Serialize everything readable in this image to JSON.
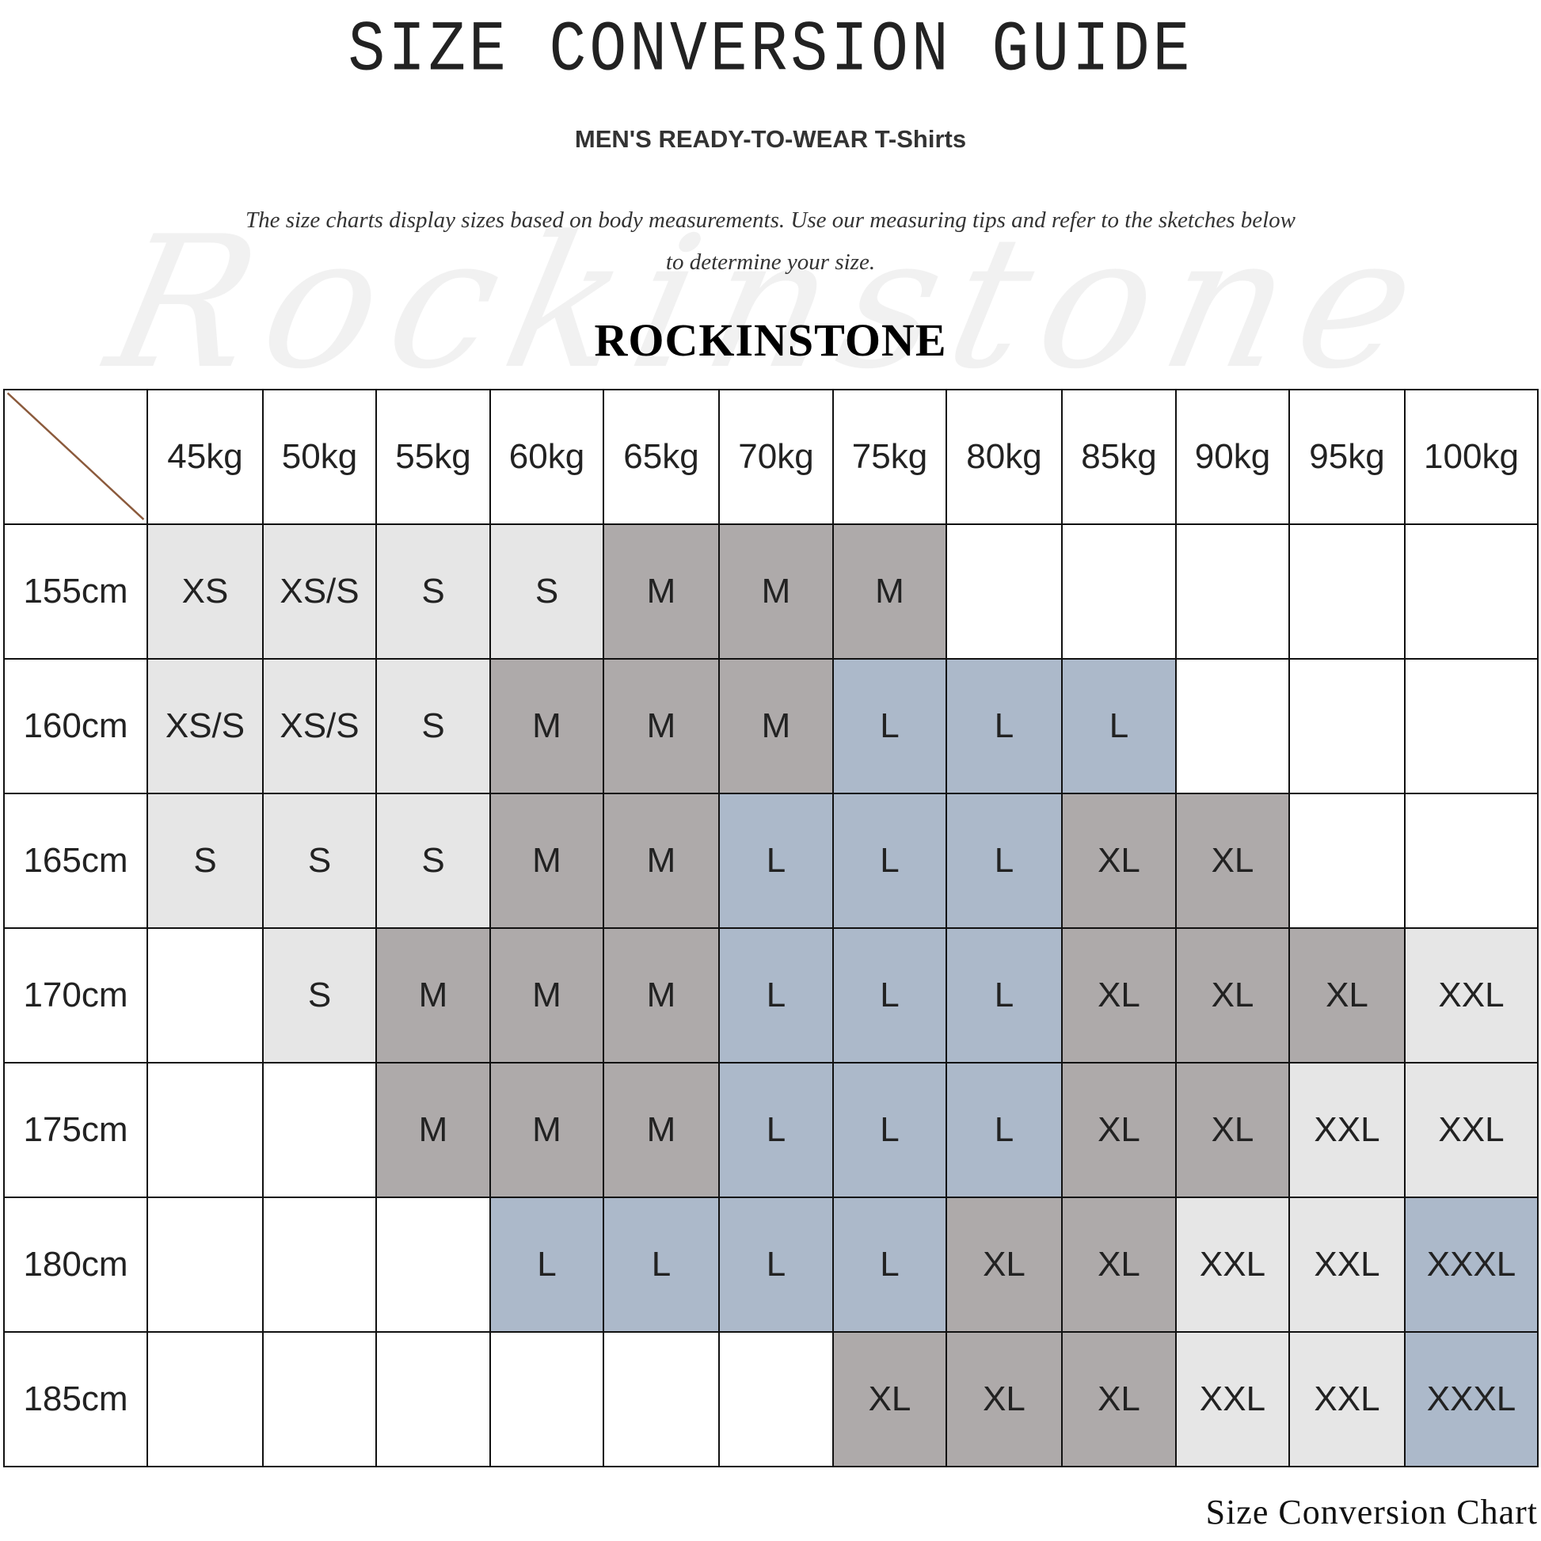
{
  "watermark": "Rockinstone",
  "title": "SIZE CONVERSION GUIDE",
  "subtitle": "MEN'S READY-TO-WEAR T-Shirts",
  "description": "The size charts display sizes based on body measurements. Use our measuring tips and refer to the sketches below to determine your size.",
  "brand": "ROCKINSTONE",
  "footer": "Size Conversion Chart",
  "colors": {
    "XS": "#e6e6e6",
    "XS/S": "#e6e6e6",
    "S": "#e6e6e6",
    "M": "#aeaaaa",
    "L": "#acb9ca",
    "XL": "#aeaaaa",
    "XXL": "#e6e6e6",
    "XXXL": "#acb9ca",
    "": "#ffffff",
    "diagonal": "#8b5a3c"
  },
  "table": {
    "columns": [
      "45kg",
      "50kg",
      "55kg",
      "60kg",
      "65kg",
      "70kg",
      "75kg",
      "80kg",
      "85kg",
      "90kg",
      "95kg",
      "100kg"
    ],
    "rows": [
      {
        "height": "155cm",
        "sizes": [
          "XS",
          "XS/S",
          "S",
          "S",
          "M",
          "M",
          "M",
          "",
          "",
          "",
          "",
          ""
        ]
      },
      {
        "height": "160cm",
        "sizes": [
          "XS/S",
          "XS/S",
          "S",
          "M",
          "M",
          "M",
          "L",
          "L",
          "L",
          "",
          "",
          ""
        ]
      },
      {
        "height": "165cm",
        "sizes": [
          "S",
          "S",
          "S",
          "M",
          "M",
          "L",
          "L",
          "L",
          "XL",
          "XL",
          "",
          ""
        ]
      },
      {
        "height": "170cm",
        "sizes": [
          "",
          "S",
          "M",
          "M",
          "M",
          "L",
          "L",
          "L",
          "XL",
          "XL",
          "XL",
          "XXL"
        ]
      },
      {
        "height": "175cm",
        "sizes": [
          "",
          "",
          "M",
          "M",
          "M",
          "L",
          "L",
          "L",
          "XL",
          "XL",
          "XXL",
          "XXL"
        ]
      },
      {
        "height": "180cm",
        "sizes": [
          "",
          "",
          "",
          "L",
          "L",
          "L",
          "L",
          "XL",
          "XL",
          "XXL",
          "XXL",
          "XXXL"
        ]
      },
      {
        "height": "185cm",
        "sizes": [
          "",
          "",
          "",
          "",
          "",
          "",
          "XL",
          "XL",
          "XL",
          "XXL",
          "XXL",
          "XXXL"
        ]
      }
    ]
  }
}
